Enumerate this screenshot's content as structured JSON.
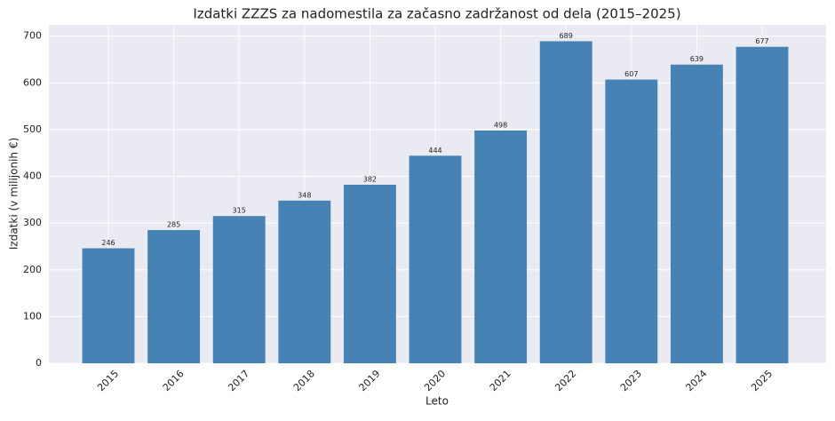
{
  "chart_data": {
    "type": "bar",
    "title": "Izdatki ZZZS za nadomestila za začasno zadržanost od dela (2015–2025)",
    "x_label": "Leto",
    "y_label": "Izdatki (v milijonih €)",
    "categories": [
      "2015",
      "2016",
      "2017",
      "2018",
      "2019",
      "2020",
      "2021",
      "2022",
      "2023",
      "2024",
      "2025"
    ],
    "values": [
      246,
      285,
      315,
      348,
      382,
      444,
      498,
      689,
      607,
      639,
      677
    ],
    "color": "#4682b4",
    "ylim": [
      0,
      724
    ],
    "yticks": [
      0,
      100,
      200,
      300,
      400,
      500,
      600,
      700
    ],
    "grid": true
  }
}
